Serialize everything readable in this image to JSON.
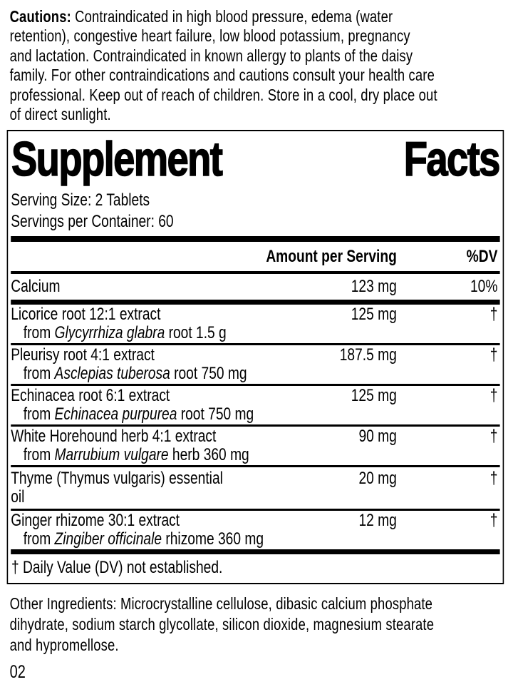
{
  "colors": {
    "ink": "#000000",
    "paper": "#ffffff"
  },
  "cautions": {
    "label": "Cautions:",
    "text": " Contraindicated in high blood pressure, edema (water\nretention), congestive heart failure, low blood potassium, pregnancy\nand lactation. Contraindicated in known allergy to plants of the daisy\nfamily. For other contraindications and cautions consult your health care\nprofessional. Keep out of reach of children. Store in a cool, dry place out\nof direct sunlight."
  },
  "supplement_facts": {
    "title_words": [
      "Supplement",
      "Facts"
    ],
    "serving_size": "Serving Size: 2 Tablets",
    "servings_per_container": "Servings per Container: 60",
    "header": {
      "amount": "Amount per Serving",
      "dv": "%DV"
    },
    "rows": [
      {
        "name": "Calcium",
        "amount": "123 mg",
        "dv": "10%"
      },
      {
        "name": "Licorice root 12:1 extract",
        "amount": "125 mg",
        "dv": "†",
        "sub_prefix": "from ",
        "sub_latin": "Glycyrrhiza glabra",
        "sub_suffix": " root 1.5 g"
      },
      {
        "name": "Pleurisy root 4:1 extract",
        "amount": "187.5 mg",
        "dv": "†",
        "sub_prefix": "from ",
        "sub_latin": "Asclepias tuberosa",
        "sub_suffix": " root 750 mg"
      },
      {
        "name": "Echinacea root 6:1 extract",
        "amount": "125 mg",
        "dv": "†",
        "sub_prefix": "from ",
        "sub_latin": "Echinacea purpurea",
        "sub_suffix": " root 750 mg"
      },
      {
        "name": "White Horehound herb 4:1 extract",
        "amount": "90 mg",
        "dv": "†",
        "sub_prefix": "from ",
        "sub_latin": "Marrubium vulgare",
        "sub_suffix": " herb 360 mg"
      },
      {
        "name": "Thyme (Thymus vulgaris) essential oil",
        "amount": "20 mg",
        "dv": "†"
      },
      {
        "name": "Ginger rhizome 30:1 extract",
        "amount": "12 mg",
        "dv": "†",
        "sub_prefix": "from ",
        "sub_latin": "Zingiber officinale",
        "sub_suffix": " rhizome 360 mg"
      }
    ],
    "footnote": "† Daily Value (DV) not established."
  },
  "other_ingredients": "Other Ingredients: Microcrystalline cellulose, dibasic calcium phosphate\ndihydrate, sodium starch glycollate, silicon dioxide, magnesium stearate\nand hypromellose.",
  "page_number": "02"
}
